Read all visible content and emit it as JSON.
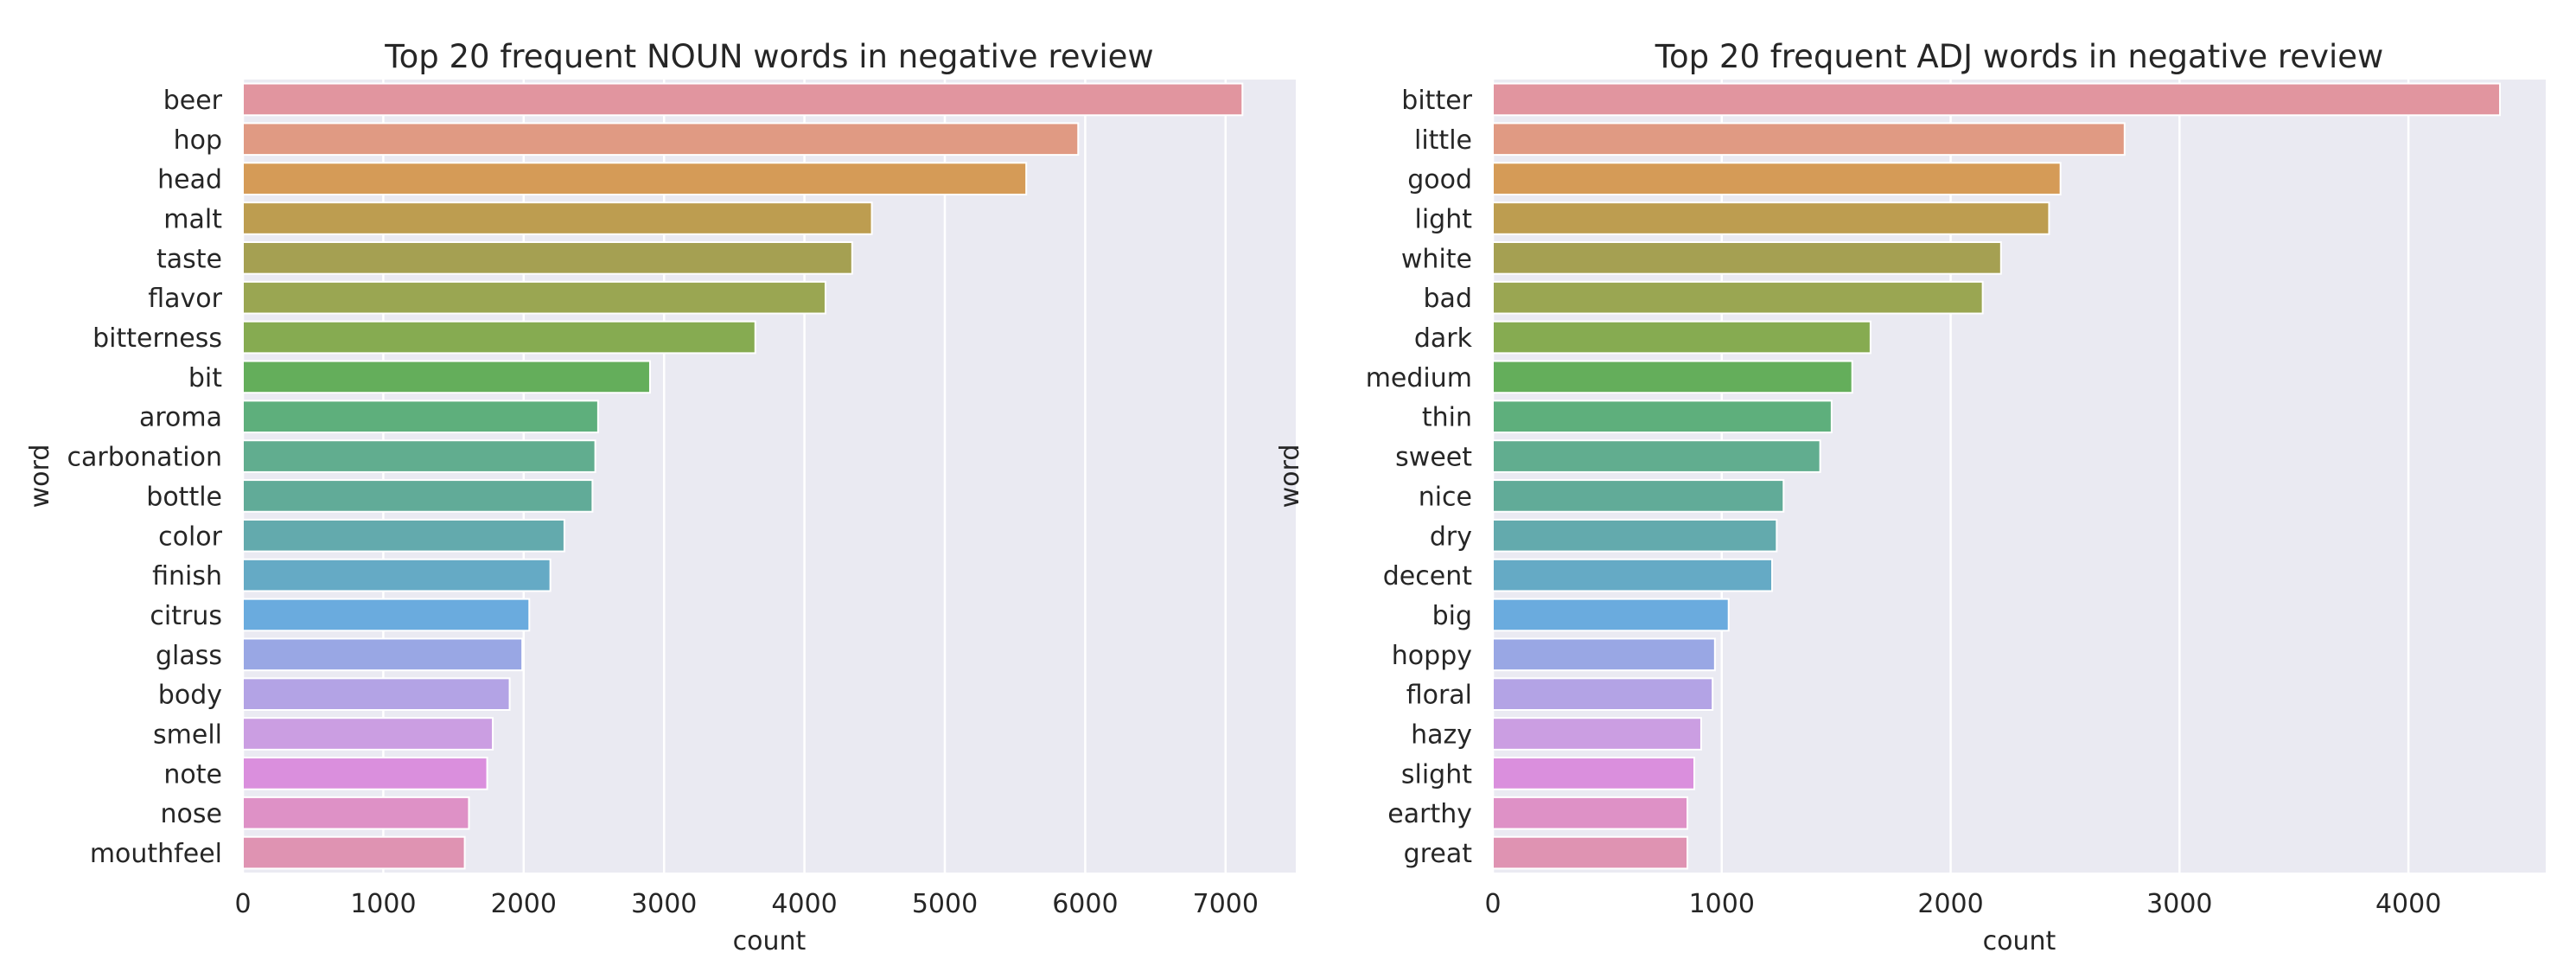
{
  "chart_data": [
    {
      "type": "bar",
      "orientation": "horizontal",
      "title": "Top 20 frequent NOUN words in negative review",
      "xlabel": "count",
      "ylabel": "word",
      "xlim": [
        0,
        7500
      ],
      "xticks": [
        0,
        1000,
        2000,
        3000,
        4000,
        5000,
        6000,
        7000
      ],
      "grid": true,
      "categories": [
        "beer",
        "hop",
        "head",
        "malt",
        "taste",
        "flavor",
        "bitterness",
        "bit",
        "aroma",
        "carbonation",
        "bottle",
        "color",
        "finish",
        "citrus",
        "glass",
        "body",
        "smell",
        "note",
        "nose",
        "mouthfeel"
      ],
      "values": [
        7120,
        5950,
        5580,
        4480,
        4340,
        4150,
        3650,
        2900,
        2530,
        2510,
        2490,
        2290,
        2190,
        2040,
        1990,
        1900,
        1780,
        1740,
        1610,
        1580
      ]
    },
    {
      "type": "bar",
      "orientation": "horizontal",
      "title": "Top 20 frequent ADJ words in negative review",
      "xlabel": "count",
      "ylabel": "word",
      "xlim": [
        0,
        4600
      ],
      "xticks": [
        0,
        1000,
        2000,
        3000,
        4000
      ],
      "grid": true,
      "categories": [
        "bitter",
        "little",
        "good",
        "light",
        "white",
        "bad",
        "dark",
        "medium",
        "thin",
        "sweet",
        "nice",
        "dry",
        "decent",
        "big",
        "hoppy",
        "floral",
        "hazy",
        "slight",
        "earthy",
        "great"
      ],
      "values": [
        4400,
        2760,
        2480,
        2430,
        2220,
        2140,
        1650,
        1570,
        1480,
        1430,
        1270,
        1240,
        1220,
        1030,
        970,
        960,
        910,
        880,
        850,
        850
      ]
    }
  ],
  "colors": {
    "background": "#eaeaf2",
    "grid": "#ffffff",
    "palette": [
      "#e1959f",
      "#e09a83",
      "#d59b57",
      "#bd9d50",
      "#a5a052",
      "#9aa652",
      "#86ab51",
      "#64ae5b",
      "#5eaf7c",
      "#61ad8f",
      "#61ab98",
      "#63aaad",
      "#65aac5",
      "#6aabde",
      "#99a7e4",
      "#b3a3e5",
      "#cb9ee2",
      "#da8fdd",
      "#de91c6",
      "#df93b2"
    ]
  }
}
